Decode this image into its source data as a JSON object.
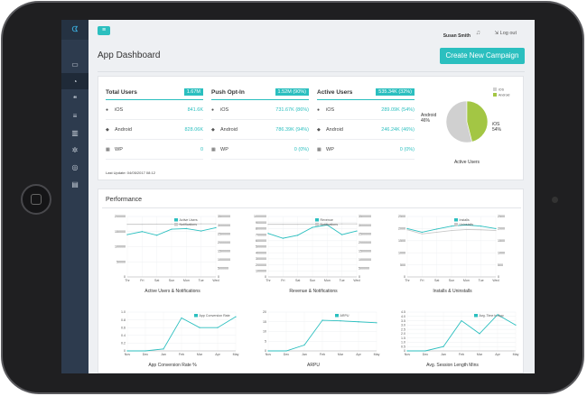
{
  "app": {
    "logo_text": "ᗧ",
    "header": {
      "user_name": "Susan Smith",
      "logout_label": "Log out",
      "menu_icon": "hamburger-icon"
    },
    "sidebar": {
      "items": [
        {
          "icon": "desktop-icon",
          "glyph": "▭"
        },
        {
          "icon": "dashboard-icon",
          "glyph": "◔"
        },
        {
          "icon": "chat-icon",
          "glyph": "❝"
        },
        {
          "icon": "database-icon",
          "glyph": "≡"
        },
        {
          "icon": "bar-chart-icon",
          "glyph": "▥"
        },
        {
          "icon": "gears-icon",
          "glyph": "✲"
        },
        {
          "icon": "broadcast-icon",
          "glyph": "◎"
        },
        {
          "icon": "book-icon",
          "glyph": "▤"
        }
      ]
    },
    "page_title": "App Dashboard",
    "create_button": "Create New Campaign",
    "stats": [
      {
        "label": "Total Users",
        "badge": "1.67M",
        "rows": [
          {
            "platform": "iOS",
            "icon": "apple-icon",
            "value": "841.6K"
          },
          {
            "platform": "Android",
            "icon": "android-icon",
            "value": "828.06K"
          },
          {
            "platform": "WP",
            "icon": "windows-icon",
            "value": "0"
          }
        ]
      },
      {
        "label": "Push Opt-In",
        "badge": "1.52M (90%)",
        "rows": [
          {
            "platform": "iOS",
            "icon": "apple-icon",
            "value": "731.67K (86%)"
          },
          {
            "platform": "Android",
            "icon": "android-icon",
            "value": "786.39K (94%)"
          },
          {
            "platform": "WP",
            "icon": "windows-icon",
            "value": "0 (0%)"
          }
        ]
      },
      {
        "label": "Active Users",
        "badge": "535.34K (32%)",
        "rows": [
          {
            "platform": "iOS",
            "icon": "apple-icon",
            "value": "289.09K (54%)"
          },
          {
            "platform": "Android",
            "icon": "android-icon",
            "value": "246.24K (46%)"
          },
          {
            "platform": "WP",
            "icon": "windows-icon",
            "value": "0 (0%)"
          }
        ]
      }
    ],
    "last_update": "Last Update: 04/05/2017 08:12",
    "performance_title": "Performance"
  },
  "colors": {
    "accent": "#2bbfbf",
    "android_green": "#a3c644",
    "ios_gray": "#d0d0d0",
    "sidebar": "#2d3b4e"
  },
  "chart_data": [
    {
      "type": "pie",
      "title": "Active Users",
      "legend": [
        "iOS",
        "Android"
      ],
      "slices": [
        {
          "name": "iOS",
          "value": 54,
          "label": "iOS 54%"
        },
        {
          "name": "Android",
          "value": 46,
          "label": "Android 46%"
        }
      ]
    },
    {
      "type": "line",
      "title": "Active Users & Notifications",
      "categories": [
        "Thr",
        "Fri",
        "Sat",
        "Sun",
        "Mon",
        "Tue",
        "Wed"
      ],
      "ylim": [
        0,
        200000
      ],
      "yticks": [
        "0",
        "50000",
        "100000",
        "150000",
        "200000"
      ],
      "y2lim": [
        0,
        3500000
      ],
      "y2ticks": [
        "0",
        "500000",
        "1000000",
        "1500000",
        "2000000",
        "2500000",
        "3000000",
        "3500000"
      ],
      "series": [
        {
          "name": "Active Users",
          "axis": "left",
          "values": [
            140000,
            150000,
            138000,
            158000,
            160000,
            152000,
            163000
          ]
        },
        {
          "name": "Notifications",
          "axis": "right",
          "values": [
            3050000,
            3050000,
            3060000,
            3060000,
            3060000,
            3070000,
            3070000
          ]
        }
      ]
    },
    {
      "type": "line",
      "title": "Revenue & Notifications",
      "categories": [
        "Thr",
        "Fri",
        "Sat",
        "Sun",
        "Mon",
        "Tue",
        "Wed"
      ],
      "ylim": [
        0,
        1000000
      ],
      "yticks": [
        "0",
        "100000",
        "200000",
        "300000",
        "400000",
        "500000",
        "600000",
        "700000",
        "800000",
        "900000",
        "1000000"
      ],
      "y2lim": [
        0,
        3500000
      ],
      "y2ticks": [
        "0",
        "500000",
        "1000000",
        "1500000",
        "2000000",
        "2500000",
        "3000000",
        "3500000"
      ],
      "series": [
        {
          "name": "Revenue",
          "axis": "left",
          "values": [
            720000,
            640000,
            690000,
            820000,
            860000,
            700000,
            760000
          ]
        },
        {
          "name": "Notifications",
          "axis": "right",
          "values": [
            3050000,
            3050000,
            3050000,
            3060000,
            3060000,
            3070000,
            3070000
          ]
        }
      ]
    },
    {
      "type": "line",
      "title": "Installs & Uninstalls",
      "categories": [
        "Thr",
        "Fri",
        "Sat",
        "Sun",
        "Mon",
        "Tue",
        "Wed"
      ],
      "ylim": [
        0,
        2500
      ],
      "yticks": [
        "0",
        "500",
        "1000",
        "1500",
        "2000",
        "2500"
      ],
      "y2lim": [
        0,
        2500
      ],
      "y2ticks": [
        "0",
        "500",
        "1000",
        "1500",
        "2000",
        "2500"
      ],
      "series": [
        {
          "name": "Installs",
          "axis": "left",
          "values": [
            2000,
            1850,
            1980,
            2100,
            2150,
            2100,
            2000
          ]
        },
        {
          "name": "Uninstalls",
          "axis": "right",
          "values": [
            1950,
            1780,
            1850,
            1920,
            1960,
            1950,
            1920
          ]
        }
      ]
    },
    {
      "type": "line",
      "title": "App Conversion Rate %",
      "categories": [
        "Nov",
        "Dec",
        "Jan",
        "Feb",
        "Mar",
        "Apr",
        "May"
      ],
      "ylim": [
        0,
        1.0
      ],
      "yticks": [
        "0",
        "0.2",
        "0.4",
        "0.6",
        "0.8",
        "1.0"
      ],
      "series": [
        {
          "name": "App Conversion Rate",
          "values": [
            0.0,
            0.0,
            0.05,
            0.85,
            0.6,
            0.6,
            0.88
          ]
        }
      ]
    },
    {
      "type": "line",
      "title": "ARPU",
      "categories": [
        "Nov",
        "Dec",
        "Jan",
        "Feb",
        "Mar",
        "Apr",
        "May"
      ],
      "ylim": [
        0,
        20
      ],
      "yticks": [
        "0",
        "5",
        "10",
        "15",
        "20"
      ],
      "series": [
        {
          "name": "ARPU",
          "values": [
            0,
            0,
            3,
            15.8,
            15.5,
            15,
            14.5
          ]
        }
      ]
    },
    {
      "type": "line",
      "title": "Avg. Session Length Mins",
      "categories": [
        "Nov",
        "Dec",
        "Jan",
        "Feb",
        "Mar",
        "Apr",
        "May"
      ],
      "ylim": [
        0,
        4.5
      ],
      "yticks": [
        "0",
        "0.5",
        "1.0",
        "1.5",
        "2.0",
        "2.5",
        "3.0",
        "3.5",
        "4.0",
        "4.5"
      ],
      "series": [
        {
          "name": "Avg. Time In App",
          "values": [
            0,
            0,
            0.5,
            3.5,
            2.0,
            4.2,
            3.0
          ]
        }
      ]
    }
  ]
}
